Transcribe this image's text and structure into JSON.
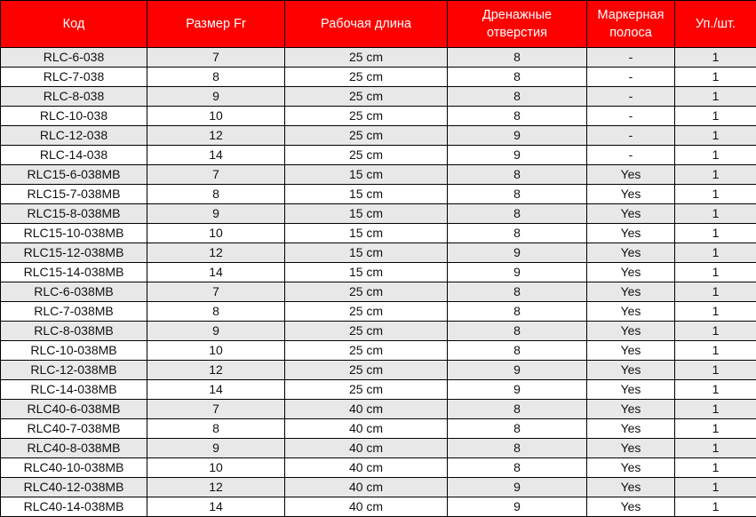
{
  "table": {
    "headers": [
      "Код",
      "Размер Fr",
      "Рабочая длина",
      "Дренажные отверстия",
      "Маркерная полоса",
      "Уп./шт."
    ],
    "rows": [
      [
        "RLC-6-038",
        "7",
        "25 cm",
        "8",
        "-",
        "1"
      ],
      [
        "RLC-7-038",
        "8",
        "25 cm",
        "8",
        "-",
        "1"
      ],
      [
        "RLC-8-038",
        "9",
        "25 cm",
        "8",
        "-",
        "1"
      ],
      [
        "RLC-10-038",
        "10",
        "25 cm",
        "8",
        "-",
        "1"
      ],
      [
        "RLC-12-038",
        "12",
        "25 cm",
        "9",
        "-",
        "1"
      ],
      [
        "RLC-14-038",
        "14",
        "25 cm",
        "9",
        "-",
        "1"
      ],
      [
        "RLC15-6-038MB",
        "7",
        "15 cm",
        "8",
        "Yes",
        "1"
      ],
      [
        "RLC15-7-038MB",
        "8",
        "15 cm",
        "8",
        "Yes",
        "1"
      ],
      [
        "RLC15-8-038MB",
        "9",
        "15 cm",
        "8",
        "Yes",
        "1"
      ],
      [
        "RLC15-10-038MB",
        "10",
        "15 cm",
        "8",
        "Yes",
        "1"
      ],
      [
        "RLC15-12-038MB",
        "12",
        "15 cm",
        "9",
        "Yes",
        "1"
      ],
      [
        "RLC15-14-038MB",
        "14",
        "15 cm",
        "9",
        "Yes",
        "1"
      ],
      [
        "RLC-6-038MB",
        "7",
        "25 cm",
        "8",
        "Yes",
        "1"
      ],
      [
        "RLC-7-038MB",
        "8",
        "25 cm",
        "8",
        "Yes",
        "1"
      ],
      [
        "RLC-8-038MB",
        "9",
        "25 cm",
        "8",
        "Yes",
        "1"
      ],
      [
        "RLC-10-038MB",
        "10",
        "25 cm",
        "8",
        "Yes",
        "1"
      ],
      [
        "RLC-12-038MB",
        "12",
        "25 cm",
        "9",
        "Yes",
        "1"
      ],
      [
        "RLC-14-038MB",
        "14",
        "25 cm",
        "9",
        "Yes",
        "1"
      ],
      [
        "RLC40-6-038MB",
        "7",
        "40 cm",
        "8",
        "Yes",
        "1"
      ],
      [
        "RLC40-7-038MB",
        "8",
        "40 cm",
        "8",
        "Yes",
        "1"
      ],
      [
        "RLC40-8-038MB",
        "9",
        "40 cm",
        "8",
        "Yes",
        "1"
      ],
      [
        "RLC40-10-038MB",
        "10",
        "40 cm",
        "8",
        "Yes",
        "1"
      ],
      [
        "RLC40-12-038MB",
        "12",
        "40 cm",
        "9",
        "Yes",
        "1"
      ],
      [
        "RLC40-14-038MB",
        "14",
        "40 cm",
        "9",
        "Yes",
        "1"
      ]
    ]
  },
  "colors": {
    "header_bg": "#ff0000",
    "header_text": "#ffffff",
    "stripe": "#e8e8e8"
  }
}
